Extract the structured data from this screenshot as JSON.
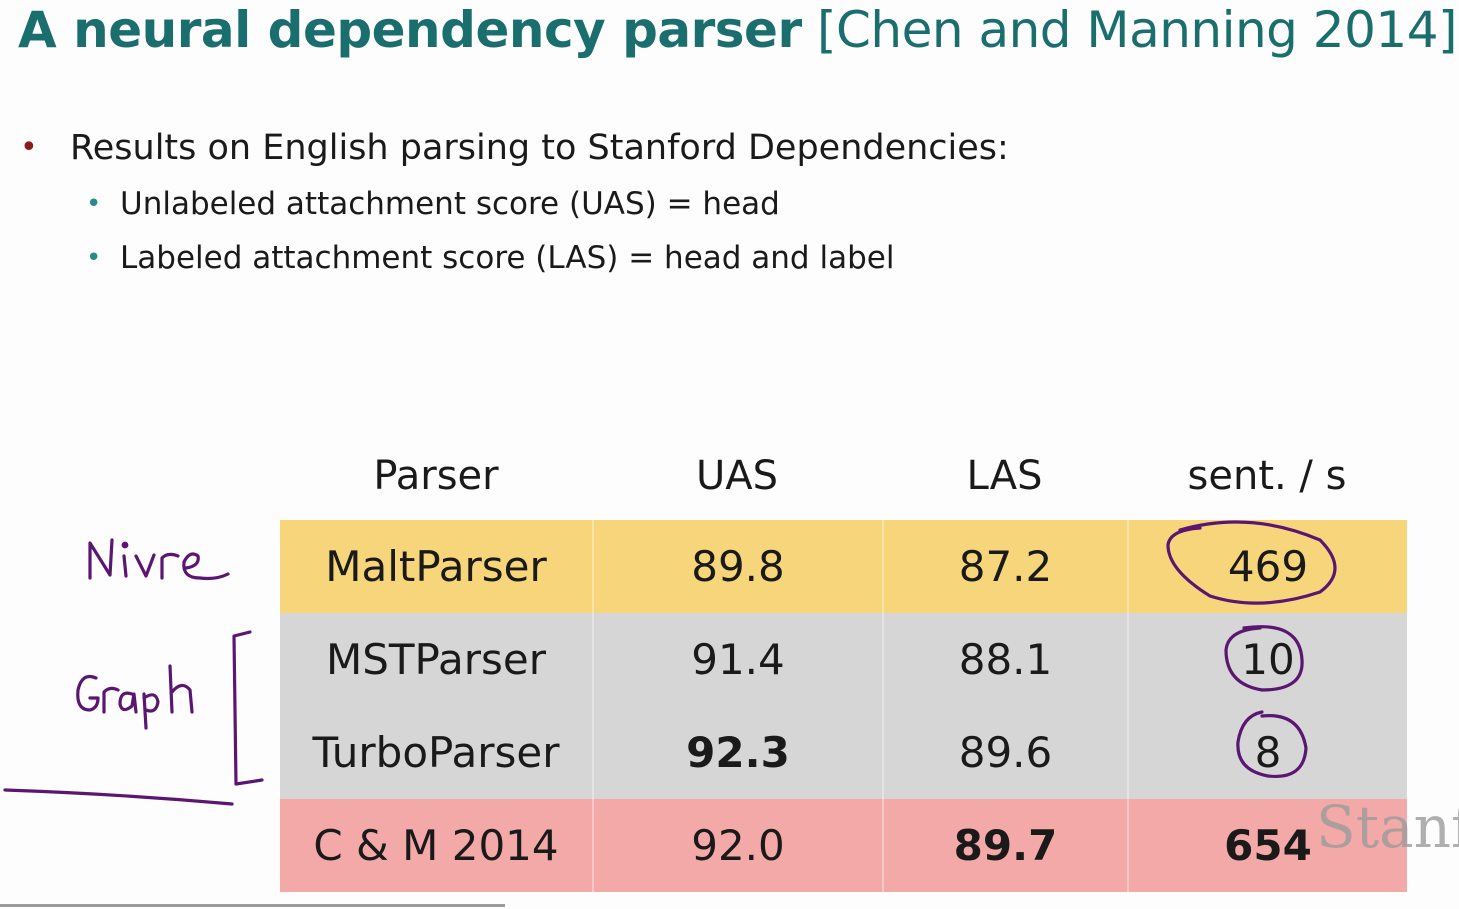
{
  "title": {
    "bold": "A neural dependency parser",
    "citation": "[Chen and Manning 2014]"
  },
  "bullets": {
    "main": "Results on English parsing to Stanford Dependencies:",
    "sub": [
      "Unlabeled attachment score (UAS) = head",
      "Labeled attachment score (LAS) = head and label"
    ]
  },
  "table": {
    "headers": [
      "Parser",
      "UAS",
      "LAS",
      "sent. / s"
    ],
    "rows": [
      {
        "parser": "MaltParser",
        "uas": "89.8",
        "las": "87.2",
        "speed": "469",
        "bg": "#f7d57a"
      },
      {
        "parser": "MSTParser",
        "uas": "91.4",
        "las": "88.1",
        "speed": "10",
        "bg": "#d6d6d6"
      },
      {
        "parser": "TurboParser",
        "uas": "92.3",
        "las": "89.6",
        "speed": "8",
        "bg": "#d6d6d6"
      },
      {
        "parser": "C & M 2014",
        "uas": "92.0",
        "las": "89.7",
        "speed": "654",
        "bg": "#f3a9a8"
      }
    ]
  },
  "annotations": {
    "nivre": "Nivre",
    "graph": "Graph"
  },
  "watermark": "Stanf"
}
